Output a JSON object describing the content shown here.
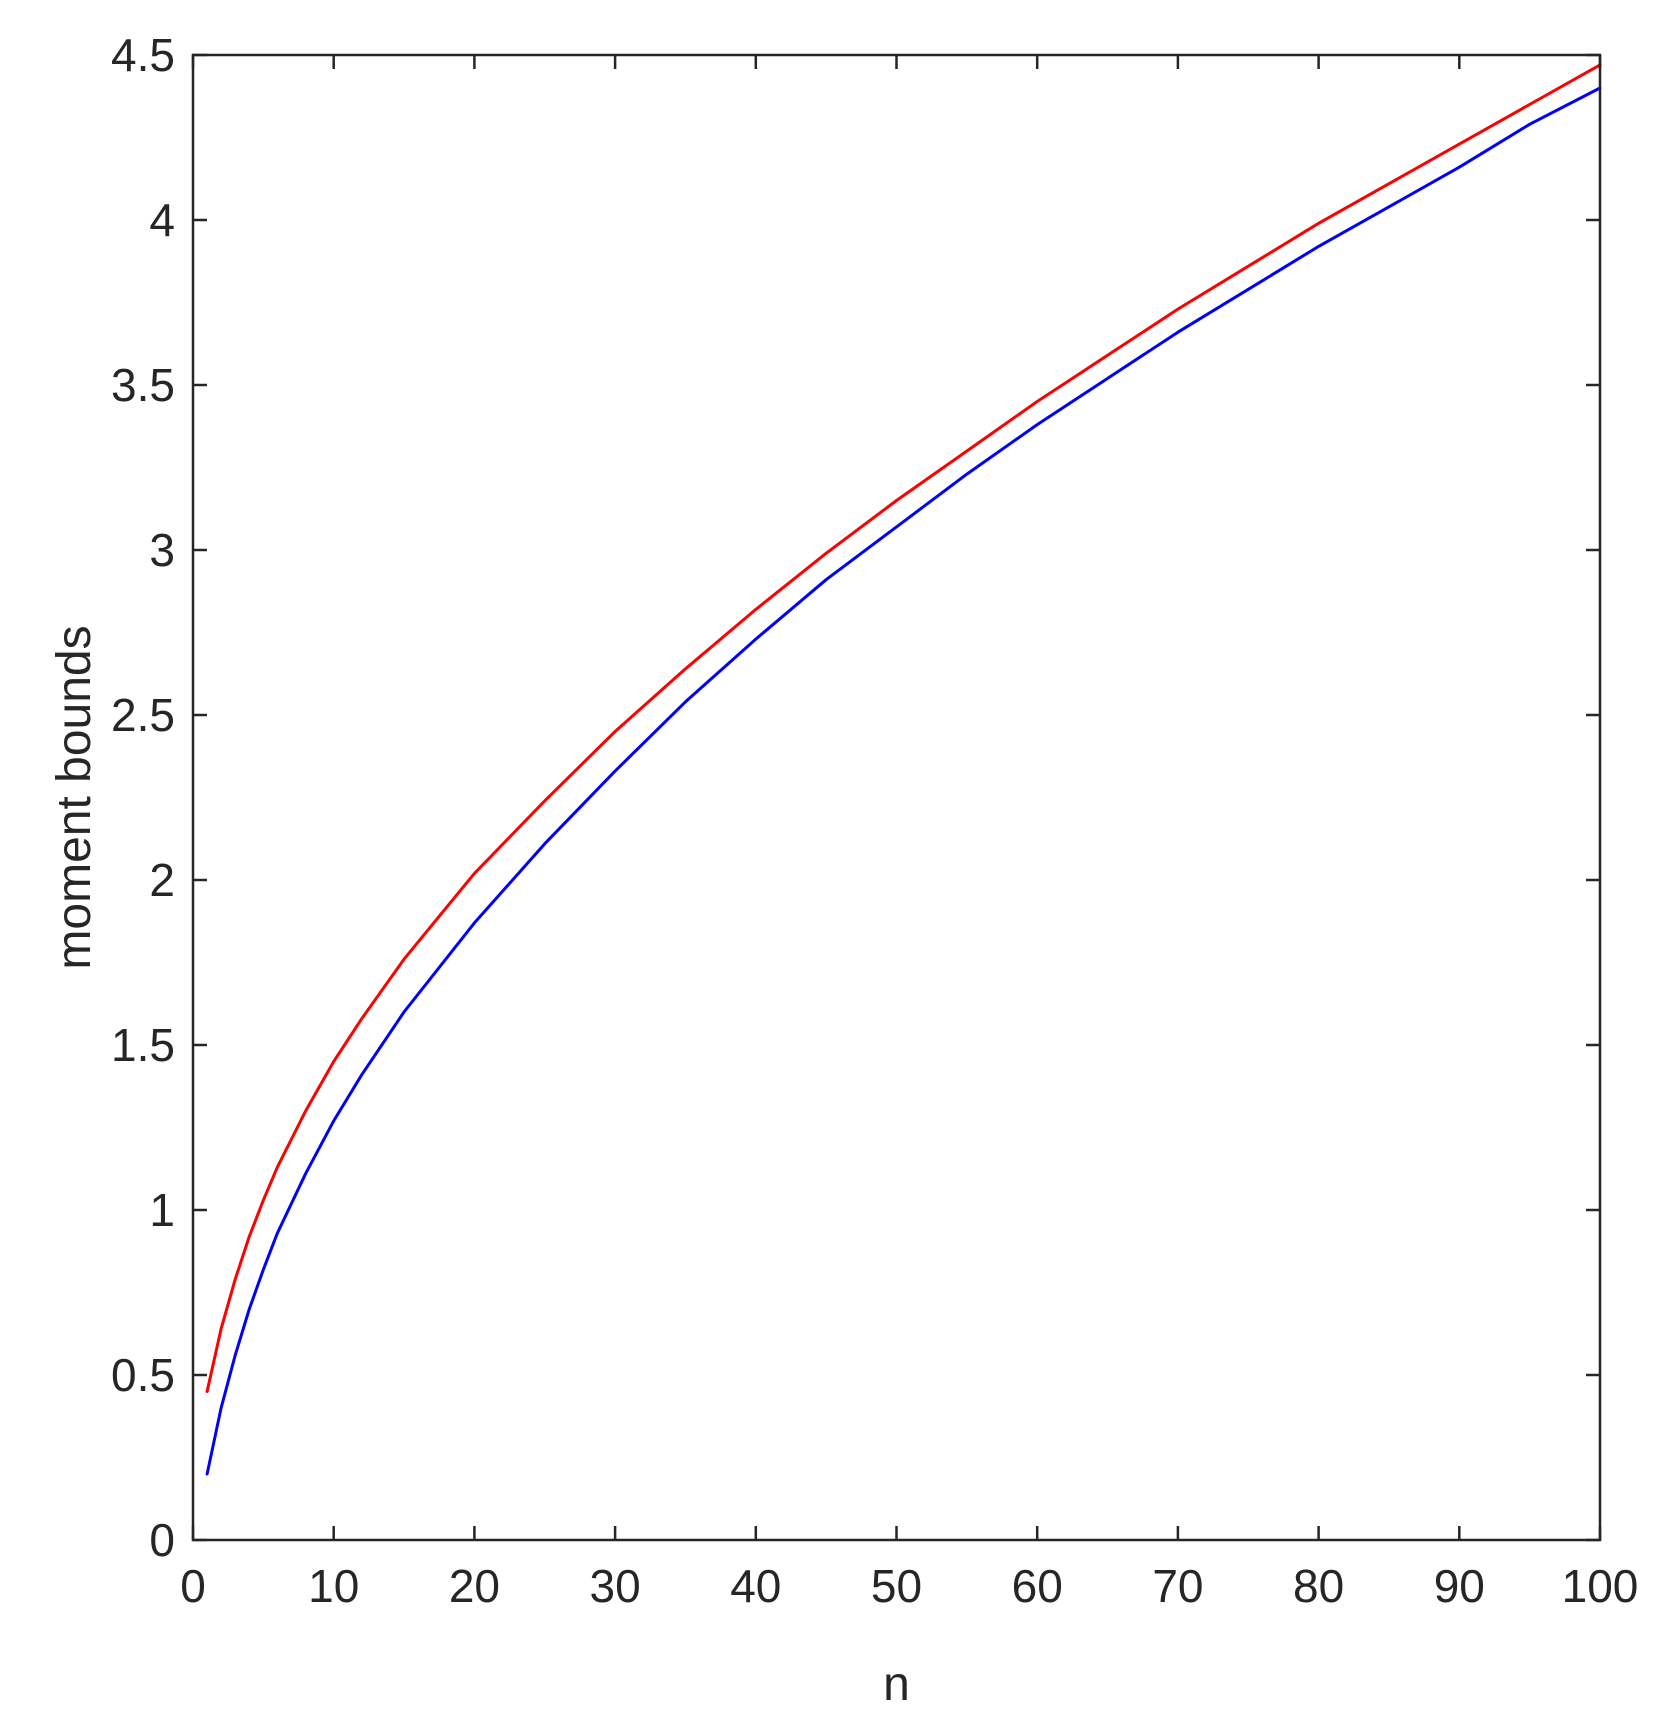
{
  "chart_data": {
    "type": "line",
    "title": "",
    "xlabel": "n",
    "ylabel": "moment bounds",
    "xlim": [
      0,
      100
    ],
    "ylim": [
      0,
      4.5
    ],
    "xticks": [
      0,
      10,
      20,
      30,
      40,
      50,
      60,
      70,
      80,
      90,
      100
    ],
    "yticks": [
      0,
      0.5,
      1,
      1.5,
      2,
      2.5,
      3,
      3.5,
      4,
      4.5
    ],
    "xtick_labels": [
      "0",
      "10",
      "20",
      "30",
      "40",
      "50",
      "60",
      "70",
      "80",
      "90",
      "100"
    ],
    "ytick_labels": [
      "0",
      "0.5",
      "1",
      "1.5",
      "2",
      "2.5",
      "3",
      "3.5",
      "4",
      "4.5"
    ],
    "grid": false,
    "legend": "none",
    "series": [
      {
        "color": "#ff0000",
        "x": [
          1,
          2,
          3,
          4,
          5,
          6,
          8,
          10,
          12,
          15,
          20,
          25,
          30,
          35,
          40,
          45,
          50,
          55,
          60,
          65,
          70,
          75,
          80,
          85,
          90,
          95,
          100
        ],
        "y": [
          0.45,
          0.64,
          0.79,
          0.92,
          1.03,
          1.13,
          1.3,
          1.45,
          1.58,
          1.76,
          2.02,
          2.24,
          2.45,
          2.64,
          2.82,
          2.99,
          3.15,
          3.3,
          3.45,
          3.59,
          3.73,
          3.86,
          3.99,
          4.11,
          4.23,
          4.35,
          4.47
        ]
      },
      {
        "color": "#0000ff",
        "x": [
          1,
          2,
          3,
          4,
          5,
          6,
          8,
          10,
          12,
          15,
          20,
          25,
          30,
          35,
          40,
          45,
          50,
          55,
          60,
          65,
          70,
          75,
          80,
          85,
          90,
          95,
          100
        ],
        "y": [
          0.2,
          0.4,
          0.56,
          0.7,
          0.82,
          0.93,
          1.11,
          1.27,
          1.41,
          1.6,
          1.87,
          2.11,
          2.33,
          2.54,
          2.73,
          2.91,
          3.07,
          3.23,
          3.38,
          3.52,
          3.66,
          3.79,
          3.92,
          4.04,
          4.16,
          4.29,
          4.4
        ]
      }
    ]
  }
}
